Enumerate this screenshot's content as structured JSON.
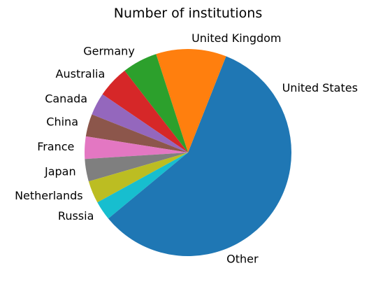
{
  "chart_data": {
    "type": "pie",
    "title": "Number of institutions",
    "start_angle_deg": 0,
    "direction": "counterclockwise",
    "slices": [
      {
        "label": "United States",
        "value": 19.0,
        "color": "#1f77b4"
      },
      {
        "label": "United Kingdom",
        "value": 11.0,
        "color": "#ff7f0e"
      },
      {
        "label": "Germany",
        "value": 5.5,
        "color": "#2ca02c"
      },
      {
        "label": "Australia",
        "value": 5.0,
        "color": "#d62728"
      },
      {
        "label": "Canada",
        "value": 3.5,
        "color": "#9467bd"
      },
      {
        "label": "China",
        "value": 3.5,
        "color": "#8c564b"
      },
      {
        "label": "France",
        "value": 3.5,
        "color": "#e377c2"
      },
      {
        "label": "Japan",
        "value": 3.5,
        "color": "#7f7f7f"
      },
      {
        "label": "Netherlands",
        "value": 3.5,
        "color": "#bcbd22"
      },
      {
        "label": "Russia",
        "value": 3.0,
        "color": "#17becf"
      },
      {
        "label": "Other",
        "value": 39.0,
        "color": "#1f77b4"
      }
    ]
  }
}
